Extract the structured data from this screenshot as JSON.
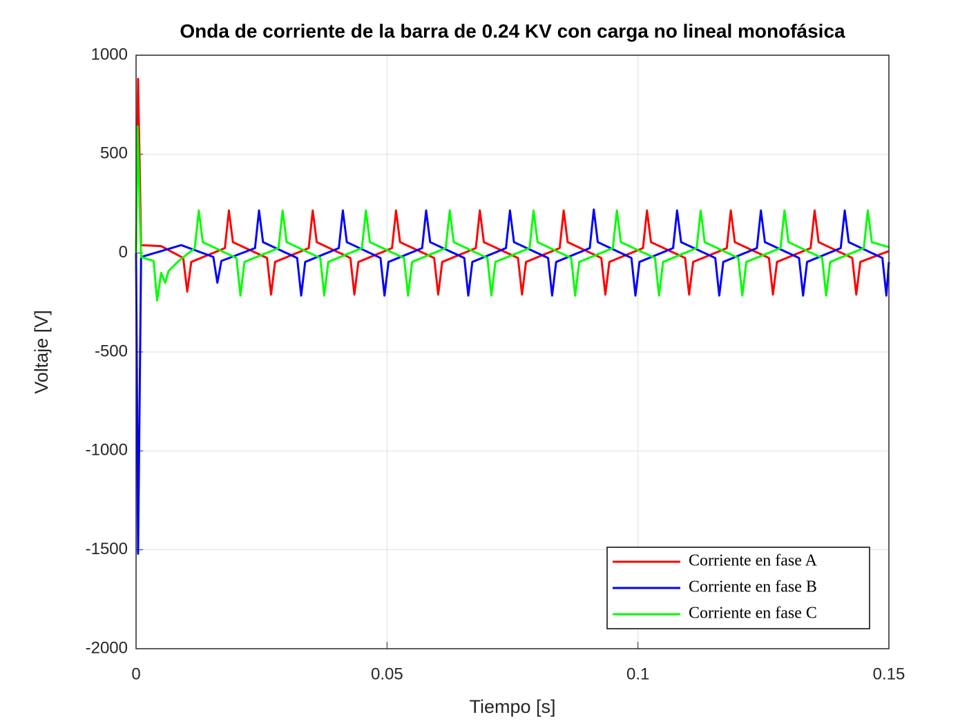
{
  "chart_data": {
    "type": "line",
    "title": "Onda de corriente de la barra de 0.24 KV con carga no lineal monofásica",
    "x_label": "Tiempo [s]",
    "y_label": "Voltaje [V]",
    "xlim": [
      0,
      0.15
    ],
    "xticks": [
      0,
      0.05,
      0.1,
      0.15
    ],
    "ylim": [
      -2000,
      1000
    ],
    "yticks": [
      -2000,
      -1500,
      -1000,
      -500,
      0,
      500,
      1000
    ],
    "grid": true,
    "legend": "southeast",
    "series": [
      {
        "name": "Corriente en fase A",
        "color": "#ff0000",
        "x": [
          0,
          0.0004,
          0.001,
          0.005,
          0.0094,
          0.0102,
          0.011,
          0.0177,
          0.0185,
          0.0193,
          0.0261,
          0.0269,
          0.0277,
          0.0344,
          0.0352,
          0.036,
          0.0427,
          0.0435,
          0.0443,
          0.051,
          0.0518,
          0.0526,
          0.0594,
          0.0602,
          0.061,
          0.0677,
          0.0685,
          0.0693,
          0.0761,
          0.0769,
          0.0777,
          0.0844,
          0.0852,
          0.086,
          0.0927,
          0.0935,
          0.0943,
          0.101,
          0.1018,
          0.1026,
          0.1094,
          0.1102,
          0.111,
          0.1177,
          0.1185,
          0.1193,
          0.1261,
          0.1269,
          0.1277,
          0.1344,
          0.1352,
          0.136,
          0.1427,
          0.1435,
          0.1443,
          0.15
        ],
        "values": [
          0,
          880,
          40,
          35,
          -25,
          -195,
          -45,
          25,
          215,
          55,
          -25,
          -210,
          -45,
          25,
          215,
          55,
          -25,
          -210,
          -45,
          25,
          215,
          55,
          -25,
          -210,
          -45,
          25,
          215,
          55,
          -25,
          -210,
          -45,
          25,
          215,
          55,
          -25,
          -210,
          -45,
          25,
          215,
          55,
          -25,
          -210,
          -45,
          25,
          215,
          55,
          -25,
          -210,
          -45,
          25,
          215,
          55,
          -25,
          -210,
          -45,
          10
        ]
      },
      {
        "name": "Corriente en fase B",
        "color": "#0000ff",
        "x": [
          0,
          0.0004,
          0.001,
          0.009,
          0.0154,
          0.0162,
          0.017,
          0.0237,
          0.0245,
          0.0253,
          0.0321,
          0.0329,
          0.0337,
          0.0404,
          0.0412,
          0.042,
          0.0487,
          0.0495,
          0.0503,
          0.057,
          0.0578,
          0.0586,
          0.0654,
          0.0662,
          0.067,
          0.0737,
          0.0745,
          0.0753,
          0.0821,
          0.0829,
          0.0837,
          0.0904,
          0.0912,
          0.092,
          0.0987,
          0.0995,
          0.1003,
          0.107,
          0.1078,
          0.1086,
          0.1154,
          0.1162,
          0.117,
          0.1237,
          0.1245,
          0.1253,
          0.1321,
          0.1329,
          0.1337,
          0.1404,
          0.1412,
          0.142,
          0.1487,
          0.1495,
          0.15
        ],
        "values": [
          0,
          -1520,
          -20,
          40,
          -20,
          -150,
          -40,
          25,
          215,
          55,
          -25,
          -215,
          -45,
          25,
          215,
          55,
          -25,
          -215,
          -45,
          25,
          215,
          55,
          -25,
          -215,
          -45,
          25,
          215,
          55,
          -25,
          -215,
          -45,
          25,
          220,
          55,
          -25,
          -215,
          -45,
          25,
          215,
          55,
          -25,
          -215,
          -45,
          25,
          215,
          55,
          -25,
          -215,
          -45,
          25,
          215,
          55,
          -25,
          -215,
          -45
        ]
      },
      {
        "name": "Corriente en fase C",
        "color": "#00ff00",
        "x": [
          0,
          0.0003,
          0.001,
          0.0035,
          0.0042,
          0.005,
          0.0058,
          0.0065,
          0.0085,
          0.0117,
          0.0125,
          0.0133,
          0.02,
          0.0208,
          0.0216,
          0.0284,
          0.0292,
          0.03,
          0.0367,
          0.0375,
          0.0383,
          0.045,
          0.0458,
          0.0466,
          0.0534,
          0.0542,
          0.055,
          0.0617,
          0.0625,
          0.0633,
          0.07,
          0.0708,
          0.0716,
          0.0784,
          0.0792,
          0.08,
          0.0867,
          0.0875,
          0.0883,
          0.095,
          0.0958,
          0.0966,
          0.1034,
          0.1042,
          0.105,
          0.1117,
          0.1125,
          0.1133,
          0.12,
          0.1208,
          0.1216,
          0.1284,
          0.1292,
          0.13,
          0.1367,
          0.1375,
          0.1383,
          0.145,
          0.1458,
          0.1466,
          0.15
        ],
        "values": [
          0,
          640,
          -20,
          -40,
          -240,
          -100,
          -150,
          -90,
          -40,
          25,
          215,
          55,
          -25,
          -215,
          -45,
          25,
          215,
          55,
          -25,
          -215,
          -45,
          25,
          215,
          55,
          -25,
          -215,
          -45,
          25,
          215,
          55,
          -25,
          -215,
          -45,
          25,
          215,
          55,
          -25,
          -215,
          -45,
          25,
          215,
          55,
          -25,
          -215,
          -45,
          25,
          215,
          55,
          -25,
          -215,
          -45,
          25,
          215,
          55,
          -25,
          -215,
          -45,
          25,
          215,
          55,
          30
        ]
      }
    ]
  }
}
